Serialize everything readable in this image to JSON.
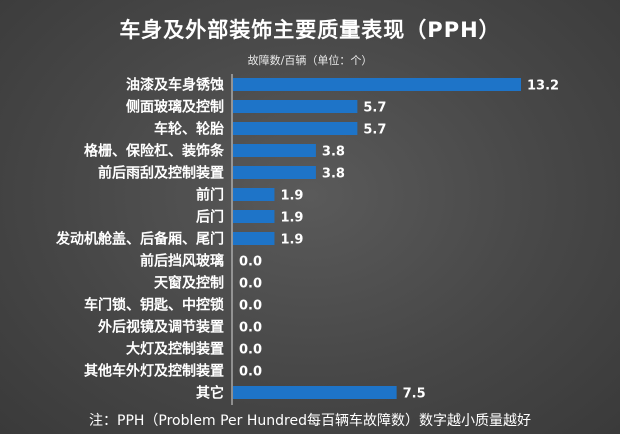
{
  "chart_data": {
    "type": "bar",
    "orientation": "horizontal",
    "title": "车身及外部装饰主要质量表现（PPH）",
    "unit_note": "故障数/百辆（单位：个）",
    "footnote": "注：PPH（Problem Per Hundred每百辆车故障数）数字越小质量越好",
    "categories": [
      "油漆及车身锈蚀",
      "侧面玻璃及控制",
      "车轮、轮胎",
      "格栅、保险杠、装饰条",
      "前后雨刮及控制装置",
      "前门",
      "后门",
      "发动机舱盖、后备厢、尾门",
      "前后挡风玻璃",
      "天窗及控制",
      "车门锁、钥匙、中控锁",
      "外后视镜及调节装置",
      "大灯及控制装置",
      "其他车外灯及控制装置",
      "其它"
    ],
    "values": [
      13.2,
      5.7,
      5.7,
      3.8,
      3.8,
      1.9,
      1.9,
      1.9,
      0.0,
      0.0,
      0.0,
      0.0,
      0.0,
      0.0,
      7.5
    ],
    "value_labels": [
      "13.2",
      "5.7",
      "5.7",
      "3.8",
      "3.8",
      "1.9",
      "1.9",
      "1.9",
      "0.0",
      "0.0",
      "0.0",
      "0.0",
      "0.0",
      "0.0",
      "7.5"
    ],
    "xlim": [
      0,
      13.2
    ],
    "grid": false,
    "legend": "none",
    "bar_color": "#1e74c8"
  }
}
